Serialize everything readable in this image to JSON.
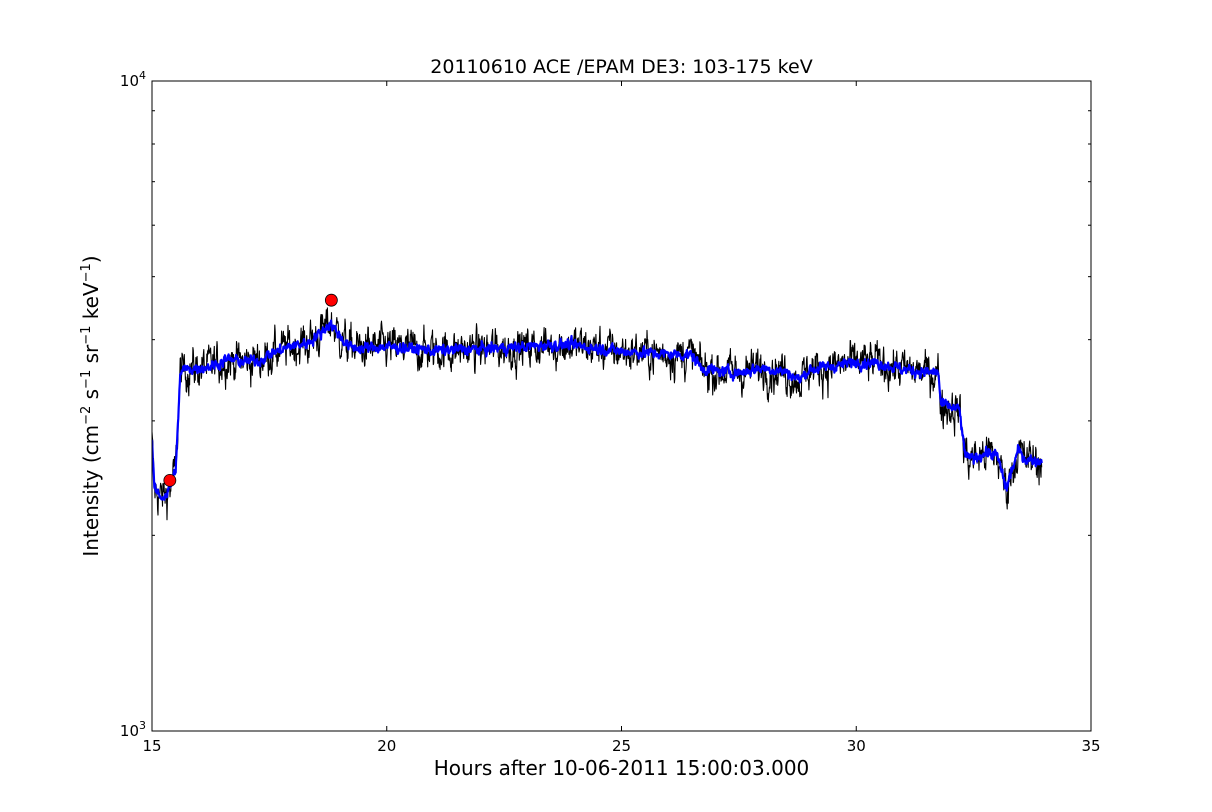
{
  "chart_data": {
    "type": "line",
    "title": "20110610 ACE /EPAM DE3: 103-175 keV",
    "xlabel": "Hours after 10-06-2011 15:00:03.000",
    "ylabel": "Intensity (cm$^{-2}$ s$^{-1}$ sr$^{-1}$ keV$^{-1}$)",
    "ylabel_parts": {
      "prefix": "Intensity (cm",
      "exp1": "−2",
      "mid1": " s",
      "exp2": "−1",
      "mid2": " sr",
      "exp3": "−1",
      "mid3": " keV",
      "exp4": "−1",
      "suffix": ")"
    },
    "xlim": [
      15,
      35
    ],
    "ylim": [
      1000,
      10000
    ],
    "yscale": "log",
    "grid": false,
    "x_ticks": [
      {
        "value": 15,
        "label": "15"
      },
      {
        "value": 20,
        "label": "20"
      },
      {
        "value": 25,
        "label": "25"
      },
      {
        "value": 30,
        "label": "30"
      },
      {
        "value": 35,
        "label": "35"
      }
    ],
    "y_ticks": [
      {
        "value": 1000,
        "base": "10",
        "exp": "3"
      },
      {
        "value": 10000,
        "base": "10",
        "exp": "4"
      }
    ],
    "series": [
      {
        "role": "raw",
        "color": "#000000",
        "x": [
          15.0,
          15.05,
          15.1,
          15.2,
          15.3,
          15.4,
          15.5,
          15.55,
          15.6,
          15.7,
          16.0,
          16.3,
          16.6,
          17.0,
          17.3,
          17.5,
          18.0,
          18.3,
          18.6,
          18.8,
          19.0,
          19.2,
          19.5,
          20.0,
          21.0,
          22.0,
          23.0,
          23.5,
          24.0,
          25.0,
          26.0,
          26.5,
          26.7,
          27.0,
          27.5,
          28.0,
          28.5,
          28.8,
          29.0,
          29.5,
          30.0,
          30.5,
          31.0,
          31.5,
          31.75,
          31.8,
          32.0,
          32.2,
          32.3,
          32.4,
          32.6,
          32.8,
          33.0,
          33.2,
          33.3,
          33.45,
          33.6,
          33.8,
          33.95
        ],
        "y": [
          2800,
          2350,
          2330,
          2290,
          2310,
          2380,
          2520,
          2900,
          3550,
          3600,
          3620,
          3650,
          3730,
          3700,
          3720,
          3800,
          3920,
          3950,
          4100,
          4250,
          4050,
          3900,
          3880,
          3900,
          3850,
          3870,
          3900,
          3930,
          3920,
          3840,
          3800,
          3790,
          3620,
          3580,
          3560,
          3620,
          3570,
          3470,
          3600,
          3640,
          3700,
          3680,
          3600,
          3560,
          3560,
          3180,
          3150,
          3120,
          2700,
          2620,
          2650,
          2680,
          2650,
          2360,
          2500,
          2700,
          2620,
          2610,
          2600
        ],
        "noise": 0.045
      },
      {
        "role": "smoothed",
        "color": "#0000ff",
        "x": [
          15.0,
          15.05,
          15.1,
          15.2,
          15.3,
          15.4,
          15.5,
          15.55,
          15.6,
          15.7,
          16.0,
          16.3,
          16.6,
          17.0,
          17.3,
          17.5,
          18.0,
          18.3,
          18.6,
          18.8,
          19.0,
          19.2,
          19.5,
          20.0,
          21.0,
          22.0,
          23.0,
          23.5,
          24.0,
          25.0,
          26.0,
          26.5,
          26.7,
          27.0,
          27.5,
          28.0,
          28.5,
          28.8,
          29.0,
          29.5,
          30.0,
          30.5,
          31.0,
          31.5,
          31.75,
          31.8,
          32.0,
          32.2,
          32.3,
          32.4,
          32.6,
          32.8,
          33.0,
          33.2,
          33.3,
          33.45,
          33.6,
          33.8,
          33.95
        ],
        "y": [
          2800,
          2350,
          2330,
          2290,
          2310,
          2380,
          2520,
          2900,
          3550,
          3600,
          3620,
          3650,
          3730,
          3700,
          3720,
          3800,
          3920,
          3950,
          4100,
          4250,
          4050,
          3900,
          3880,
          3900,
          3850,
          3870,
          3900,
          3930,
          3920,
          3840,
          3800,
          3790,
          3620,
          3580,
          3560,
          3620,
          3570,
          3470,
          3600,
          3640,
          3700,
          3680,
          3600,
          3560,
          3560,
          3180,
          3150,
          3120,
          2700,
          2620,
          2650,
          2680,
          2650,
          2360,
          2500,
          2700,
          2620,
          2610,
          2600
        ],
        "noise": 0.012
      }
    ],
    "markers": [
      {
        "name": "onset-marker",
        "x": 15.38,
        "y": 2430,
        "color": "#ff0000"
      },
      {
        "name": "peak-marker",
        "x": 18.82,
        "y": 4600,
        "color": "#ff0000"
      }
    ]
  }
}
